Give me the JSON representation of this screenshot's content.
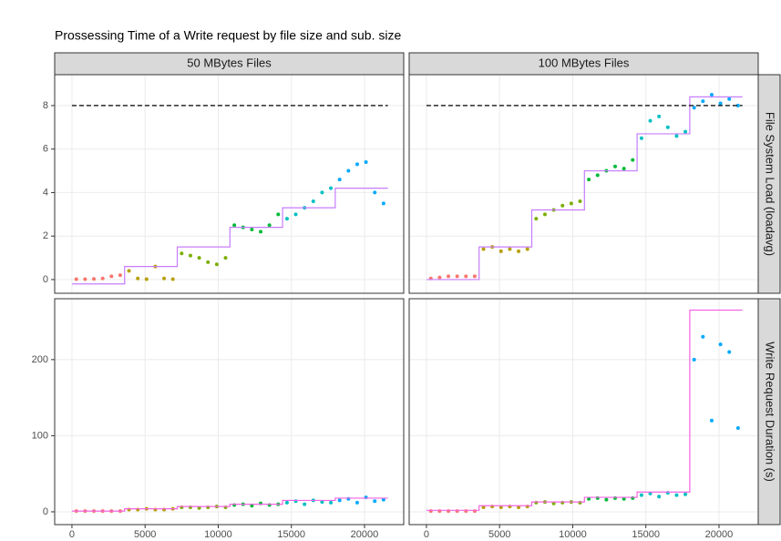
{
  "title": "Prossessing Time of a Write request by file size and sub. size",
  "facets": {
    "cols": [
      "50 MBytes Files",
      "100 MBytes Files"
    ],
    "rows": [
      "File System Load (loadavg)",
      "Write Request Duration (s)"
    ]
  },
  "chart_data": [
    {
      "type": "scatter",
      "grid": true,
      "xlim": [
        -1180,
        22680
      ],
      "xticks": [
        0,
        5000,
        10000,
        15000,
        20000
      ],
      "ylim": [
        -0.63,
        9.42
      ],
      "yticks": [
        0,
        2,
        4,
        6,
        8
      ],
      "hline": {
        "y": 8,
        "x": [
          0,
          21600
        ]
      },
      "series": [
        {
          "color": "#F8766D",
          "x": [
            300,
            900,
            1500,
            2100,
            2700,
            3300
          ],
          "values": [
            0.02,
            0.02,
            0.03,
            0.05,
            0.15,
            0.2
          ]
        },
        {
          "color": "#B79F00",
          "x": [
            3900,
            4500,
            5100,
            5700,
            6300,
            6900
          ],
          "values": [
            0.4,
            0.05,
            0.02,
            0.6,
            0.05,
            0.02
          ]
        },
        {
          "color": "#7CAE00",
          "x": [
            7500,
            8100,
            8700,
            9300,
            9900,
            10500
          ],
          "values": [
            1.2,
            1.1,
            1.0,
            0.8,
            0.7,
            1.0
          ]
        },
        {
          "color": "#00BA38",
          "x": [
            11100,
            11700,
            12300,
            12900,
            13500,
            14100
          ],
          "values": [
            2.5,
            2.4,
            2.3,
            2.2,
            2.5,
            3.0
          ]
        },
        {
          "color": "#00BFC4",
          "x": [
            14700,
            15300,
            15900,
            16500,
            17100,
            17700
          ],
          "values": [
            2.8,
            3.0,
            3.3,
            3.6,
            4.0,
            4.2
          ]
        },
        {
          "color": "#00A9FF",
          "x": [
            18300,
            18900,
            19500,
            20100,
            20700,
            21300
          ],
          "values": [
            4.6,
            5.0,
            5.3,
            5.4,
            4.0,
            3.5
          ]
        }
      ],
      "lines": [
        {
          "color": "#C77CFF",
          "x": [
            0,
            3600,
            3600,
            7200,
            7200,
            10800,
            10800,
            14400,
            14400,
            18000,
            18000,
            21600
          ],
          "values": [
            -0.2,
            -0.2,
            0.6,
            0.6,
            1.5,
            1.5,
            2.4,
            2.4,
            3.3,
            3.3,
            4.2,
            4.2
          ]
        }
      ]
    },
    {
      "type": "scatter",
      "grid": true,
      "xlim": [
        -1180,
        22680
      ],
      "xticks": [
        0,
        5000,
        10000,
        15000,
        20000
      ],
      "ylim": [
        -0.63,
        9.42
      ],
      "yticks": [
        0,
        2,
        4,
        6,
        8
      ],
      "hline": {
        "y": 8,
        "x": [
          0,
          21600
        ]
      },
      "series": [
        {
          "color": "#F8766D",
          "x": [
            300,
            900,
            1500,
            2100,
            2700,
            3300
          ],
          "values": [
            0.05,
            0.1,
            0.15,
            0.15,
            0.15,
            0.15
          ]
        },
        {
          "color": "#B79F00",
          "x": [
            3900,
            4500,
            5100,
            5700,
            6300,
            6900
          ],
          "values": [
            1.4,
            1.5,
            1.3,
            1.4,
            1.3,
            1.4
          ]
        },
        {
          "color": "#7CAE00",
          "x": [
            7500,
            8100,
            8700,
            9300,
            9900,
            10500
          ],
          "values": [
            2.8,
            3.0,
            3.2,
            3.4,
            3.5,
            3.6
          ]
        },
        {
          "color": "#00BA38",
          "x": [
            11100,
            11700,
            12300,
            12900,
            13500,
            14100
          ],
          "values": [
            4.6,
            4.8,
            5.0,
            5.2,
            5.1,
            5.5
          ]
        },
        {
          "color": "#00BFC4",
          "x": [
            14700,
            15300,
            15900,
            16500,
            17100,
            17700
          ],
          "values": [
            6.5,
            7.3,
            7.5,
            7.0,
            6.6,
            6.8
          ]
        },
        {
          "color": "#00A9FF",
          "x": [
            18300,
            18900,
            19500,
            20100,
            20700,
            21300
          ],
          "values": [
            7.9,
            8.2,
            8.5,
            8.1,
            8.3,
            8.0
          ]
        }
      ],
      "lines": [
        {
          "color": "#C77CFF",
          "x": [
            0,
            3600,
            3600,
            7200,
            7200,
            10800,
            10800,
            14400,
            14400,
            18000,
            18000,
            21600
          ],
          "values": [
            0,
            0,
            1.5,
            1.5,
            3.2,
            3.2,
            5.0,
            5.0,
            6.7,
            6.7,
            8.4,
            8.4
          ]
        }
      ]
    },
    {
      "type": "scatter",
      "grid": true,
      "xlim": [
        -1180,
        22680
      ],
      "xticks": [
        0,
        5000,
        10000,
        15000,
        20000
      ],
      "ylim": [
        -16.8,
        280
      ],
      "yticks": [
        0,
        100,
        200
      ],
      "series": [
        {
          "color": "#F8766D",
          "x": [
            300,
            900,
            1500,
            2100,
            2700,
            3300
          ],
          "values": [
            1,
            1,
            1,
            1,
            1,
            1
          ]
        },
        {
          "color": "#B79F00",
          "x": [
            3900,
            4500,
            5100,
            5700,
            6300,
            6900
          ],
          "values": [
            3,
            3,
            4,
            3,
            3,
            4
          ]
        },
        {
          "color": "#7CAE00",
          "x": [
            7500,
            8100,
            8700,
            9300,
            9900,
            10500
          ],
          "values": [
            6,
            6,
            5,
            6,
            7,
            6
          ]
        },
        {
          "color": "#00BA38",
          "x": [
            11100,
            11700,
            12300,
            12900,
            13500,
            14100
          ],
          "values": [
            9,
            10,
            8,
            11,
            9,
            10
          ]
        },
        {
          "color": "#00BFC4",
          "x": [
            14700,
            15300,
            15900,
            16500,
            17100,
            17700
          ],
          "values": [
            12,
            14,
            10,
            15,
            13,
            12
          ]
        },
        {
          "color": "#00A9FF",
          "x": [
            18300,
            18900,
            19500,
            20100,
            20700,
            21300
          ],
          "values": [
            15,
            17,
            12,
            19,
            14,
            16
          ]
        }
      ],
      "lines": [
        {
          "color": "#F564E3",
          "x": [
            0,
            3600,
            3600,
            7200,
            7200,
            10800,
            10800,
            14400,
            14400,
            18000,
            18000,
            21600
          ],
          "values": [
            1,
            1,
            4,
            4,
            7,
            7,
            10,
            10,
            15,
            15,
            18,
            18
          ]
        }
      ]
    },
    {
      "type": "scatter",
      "grid": true,
      "xlim": [
        -1180,
        22680
      ],
      "xticks": [
        0,
        5000,
        10000,
        15000,
        20000
      ],
      "ylim": [
        -16.8,
        280
      ],
      "yticks": [
        0,
        100,
        200
      ],
      "series": [
        {
          "color": "#F8766D",
          "x": [
            300,
            900,
            1500,
            2100,
            2700,
            3300
          ],
          "values": [
            1,
            1,
            1,
            1,
            1,
            1
          ]
        },
        {
          "color": "#B79F00",
          "x": [
            3900,
            4500,
            5100,
            5700,
            6300,
            6900
          ],
          "values": [
            6,
            7,
            6,
            7,
            6,
            7
          ]
        },
        {
          "color": "#7CAE00",
          "x": [
            7500,
            8100,
            8700,
            9300,
            9900,
            10500
          ],
          "values": [
            12,
            13,
            11,
            12,
            13,
            12
          ]
        },
        {
          "color": "#00BA38",
          "x": [
            11100,
            11700,
            12300,
            12900,
            13500,
            14100
          ],
          "values": [
            17,
            18,
            16,
            18,
            17,
            18
          ]
        },
        {
          "color": "#00BFC4",
          "x": [
            14700,
            15300,
            15900,
            16500,
            17100,
            17700
          ],
          "values": [
            22,
            24,
            20,
            25,
            22,
            23
          ]
        },
        {
          "color": "#00A9FF",
          "x": [
            18300,
            18900,
            19500,
            20100,
            20700,
            21300
          ],
          "values": [
            200,
            230,
            120,
            220,
            210,
            110
          ]
        }
      ],
      "lines": [
        {
          "color": "#F564E3",
          "x": [
            0,
            3600,
            3600,
            7200,
            7200,
            10800,
            10800,
            14400,
            14400,
            18000,
            18000,
            21600
          ],
          "values": [
            2,
            2,
            8,
            8,
            13,
            13,
            19,
            19,
            26,
            26,
            265,
            265
          ]
        }
      ]
    }
  ]
}
